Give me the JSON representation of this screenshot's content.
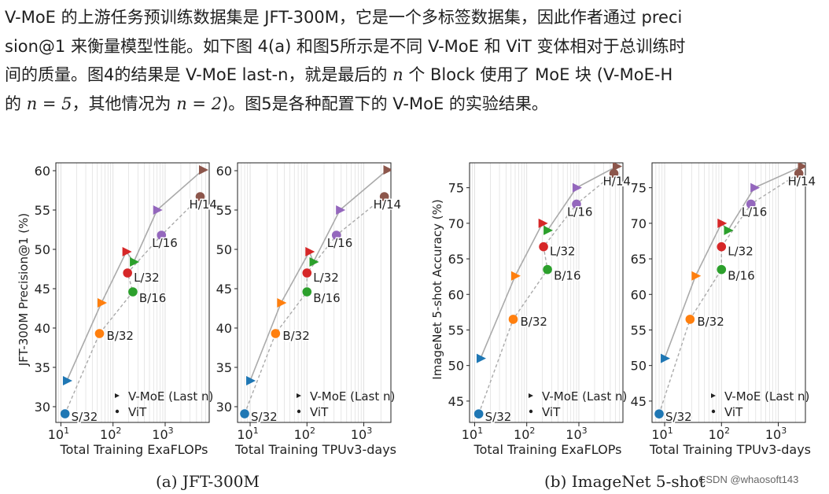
{
  "paragraph": {
    "l1": "V-MoE 的上游任务预训练数据集是 JFT-300M，它是一个多标签数据集，因此作者通过 preci",
    "l2": "sion@1 来衡量模型性能。如下图 4(a) 和图5所示是不同 V-MoE 和 ViT 变体相对于总训练时",
    "l3a": "间的质量。图4的结果是 V-MoE last-n，就是最后的 ",
    "l3n": "n",
    "l3b": " 个 Block 使用了 MoE 块 (V-MoE-H",
    "l4a": "的 ",
    "l4eq1": "n = 5",
    "l4b": "，其他情况为 ",
    "l4eq2": "n = 2",
    "l4c": ")。图5是各种配置下的 V-MoE 的实验结果。"
  },
  "captions": {
    "a": "(a) JFT-300M",
    "b": "(b) ImageNet 5-shot"
  },
  "watermark": "CSDN @whaosoft143",
  "colors": {
    "S": "#1f77b4",
    "B32": "#ff7f0e",
    "L32": "#d62728",
    "B16": "#2ca02c",
    "L16": "#9467bd",
    "H14": "#8c564b",
    "line": "#aaaaaa",
    "grid": "#dddddd"
  },
  "chart_data": [
    {
      "type": "scatter",
      "xlabel": "Total Training ExaFLOPs",
      "ylabel": "JFT-300M Precision@1 (%)",
      "xscale": "log",
      "xlim": [
        8,
        7000
      ],
      "ylim": [
        28,
        61
      ],
      "yticks": [
        30,
        35,
        40,
        45,
        50,
        55,
        60
      ],
      "xticks": [
        {
          "v": 10,
          "label": "10",
          "sup": "1"
        },
        {
          "v": 100,
          "label": "10",
          "sup": "2"
        },
        {
          "v": 1000,
          "label": "10",
          "sup": "3"
        }
      ],
      "legend": [
        "V-MoE (Last n)",
        "ViT"
      ],
      "series": [
        {
          "name": "V-MoE (Last n)",
          "marker": "triangle",
          "points": [
            {
              "model": "S/32",
              "x": 13,
              "y": 33.3
            },
            {
              "model": "B/32",
              "x": 60,
              "y": 43.2
            },
            {
              "model": "L/32",
              "x": 180,
              "y": 49.7
            },
            {
              "model": "B/16",
              "x": 250,
              "y": 48.4
            },
            {
              "model": "L/16",
              "x": 700,
              "y": 55.0
            },
            {
              "model": "H/14",
              "x": 5300,
              "y": 60.1
            }
          ]
        },
        {
          "name": "ViT",
          "marker": "circle",
          "points": [
            {
              "model": "S/32",
              "x": 12,
              "y": 29.1,
              "label": "S/32"
            },
            {
              "model": "B/32",
              "x": 55,
              "y": 39.3,
              "label": "B/32"
            },
            {
              "model": "L/32",
              "x": 190,
              "y": 47.0,
              "label": "L/32"
            },
            {
              "model": "B/16",
              "x": 240,
              "y": 44.6,
              "label": "B/16"
            },
            {
              "model": "L/16",
              "x": 850,
              "y": 51.8,
              "label": "L/16"
            },
            {
              "model": "H/14",
              "x": 4700,
              "y": 56.7,
              "label": "H/14"
            }
          ]
        }
      ]
    },
    {
      "type": "scatter",
      "xlabel": "Total Training TPUv3-days",
      "ylabel": "",
      "xscale": "log",
      "xlim": [
        6,
        3000
      ],
      "ylim": [
        28,
        61
      ],
      "yticks": [
        30,
        35,
        40,
        45,
        50,
        55,
        60
      ],
      "xticks": [
        {
          "v": 10,
          "label": "10",
          "sup": "1"
        },
        {
          "v": 100,
          "label": "10",
          "sup": "2"
        },
        {
          "v": 1000,
          "label": "10",
          "sup": "3"
        }
      ],
      "legend": [
        "V-MoE (Last n)",
        "ViT"
      ],
      "series": [
        {
          "name": "V-MoE (Last n)",
          "marker": "triangle",
          "points": [
            {
              "model": "S/32",
              "x": 10,
              "y": 33.3
            },
            {
              "model": "B/32",
              "x": 35,
              "y": 43.2
            },
            {
              "model": "L/32",
              "x": 110,
              "y": 49.7
            },
            {
              "model": "B/16",
              "x": 130,
              "y": 48.4
            },
            {
              "model": "L/16",
              "x": 380,
              "y": 55.0
            },
            {
              "model": "H/14",
              "x": 2600,
              "y": 60.1
            }
          ]
        },
        {
          "name": "ViT",
          "marker": "circle",
          "points": [
            {
              "model": "S/32",
              "x": 8,
              "y": 29.1,
              "label": "S/32"
            },
            {
              "model": "B/32",
              "x": 28,
              "y": 39.3,
              "label": "B/32"
            },
            {
              "model": "L/32",
              "x": 100,
              "y": 47.0,
              "label": "L/32"
            },
            {
              "model": "B/16",
              "x": 100,
              "y": 44.6,
              "label": "B/16"
            },
            {
              "model": "L/16",
              "x": 330,
              "y": 51.8,
              "label": "L/16"
            },
            {
              "model": "H/14",
              "x": 2300,
              "y": 56.7,
              "label": "H/14"
            }
          ]
        }
      ]
    },
    {
      "type": "scatter",
      "xlabel": "Total Training ExaFLOPs",
      "ylabel": "ImageNet 5-shot Accuracy (%)",
      "xscale": "log",
      "xlim": [
        8,
        7000
      ],
      "ylim": [
        42,
        78.5
      ],
      "yticks": [
        45,
        50,
        55,
        60,
        65,
        70,
        75
      ],
      "xticks": [
        {
          "v": 10,
          "label": "10",
          "sup": "1"
        },
        {
          "v": 100,
          "label": "10",
          "sup": "2"
        },
        {
          "v": 1000,
          "label": "10",
          "sup": "3"
        }
      ],
      "legend": [
        "V-MoE (Last n)",
        "ViT"
      ],
      "series": [
        {
          "name": "V-MoE (Last n)",
          "marker": "triangle",
          "points": [
            {
              "model": "S/32",
              "x": 13,
              "y": 51.0
            },
            {
              "model": "B/32",
              "x": 60,
              "y": 62.6
            },
            {
              "model": "L/32",
              "x": 200,
              "y": 70.0
            },
            {
              "model": "B/16",
              "x": 250,
              "y": 69.0
            },
            {
              "model": "L/16",
              "x": 900,
              "y": 75.0
            },
            {
              "model": "H/14",
              "x": 5300,
              "y": 78.0
            }
          ]
        },
        {
          "name": "ViT",
          "marker": "circle",
          "points": [
            {
              "model": "S/32",
              "x": 12,
              "y": 43.2,
              "label": "S/32"
            },
            {
              "model": "B/32",
              "x": 55,
              "y": 56.5,
              "label": "B/32"
            },
            {
              "model": "L/32",
              "x": 210,
              "y": 66.7,
              "label": "L/32"
            },
            {
              "model": "B/16",
              "x": 250,
              "y": 63.5,
              "label": "B/16"
            },
            {
              "model": "L/16",
              "x": 900,
              "y": 72.7,
              "label": "L/16"
            },
            {
              "model": "H/14",
              "x": 4700,
              "y": 77.0,
              "label": "H/14"
            }
          ]
        }
      ]
    },
    {
      "type": "scatter",
      "xlabel": "Total Training TPUv3-days",
      "ylabel": "",
      "xscale": "log",
      "xlim": [
        6,
        3000
      ],
      "ylim": [
        42,
        78.5
      ],
      "yticks": [
        45,
        50,
        55,
        60,
        65,
        70,
        75
      ],
      "xticks": [
        {
          "v": 10,
          "label": "10",
          "sup": "1"
        },
        {
          "v": 100,
          "label": "10",
          "sup": "2"
        },
        {
          "v": 1000,
          "label": "10",
          "sup": "3"
        }
      ],
      "legend": [
        "V-MoE (Last n)",
        "ViT"
      ],
      "series": [
        {
          "name": "V-MoE (Last n)",
          "marker": "triangle",
          "points": [
            {
              "model": "S/32",
              "x": 10,
              "y": 51.0
            },
            {
              "model": "B/32",
              "x": 35,
              "y": 62.6
            },
            {
              "model": "L/32",
              "x": 100,
              "y": 70.0
            },
            {
              "model": "B/16",
              "x": 130,
              "y": 69.0
            },
            {
              "model": "L/16",
              "x": 380,
              "y": 75.0
            },
            {
              "model": "H/14",
              "x": 2600,
              "y": 78.0
            }
          ]
        },
        {
          "name": "ViT",
          "marker": "circle",
          "points": [
            {
              "model": "S/32",
              "x": 8,
              "y": 43.2,
              "label": "S/32"
            },
            {
              "model": "B/32",
              "x": 28,
              "y": 56.5,
              "label": "B/32"
            },
            {
              "model": "L/32",
              "x": 100,
              "y": 66.7,
              "label": "L/32"
            },
            {
              "model": "B/16",
              "x": 100,
              "y": 63.5,
              "label": "B/16"
            },
            {
              "model": "L/16",
              "x": 330,
              "y": 72.7,
              "label": "L/16"
            },
            {
              "model": "H/14",
              "x": 2300,
              "y": 77.0,
              "label": "H/14"
            }
          ]
        }
      ]
    }
  ]
}
